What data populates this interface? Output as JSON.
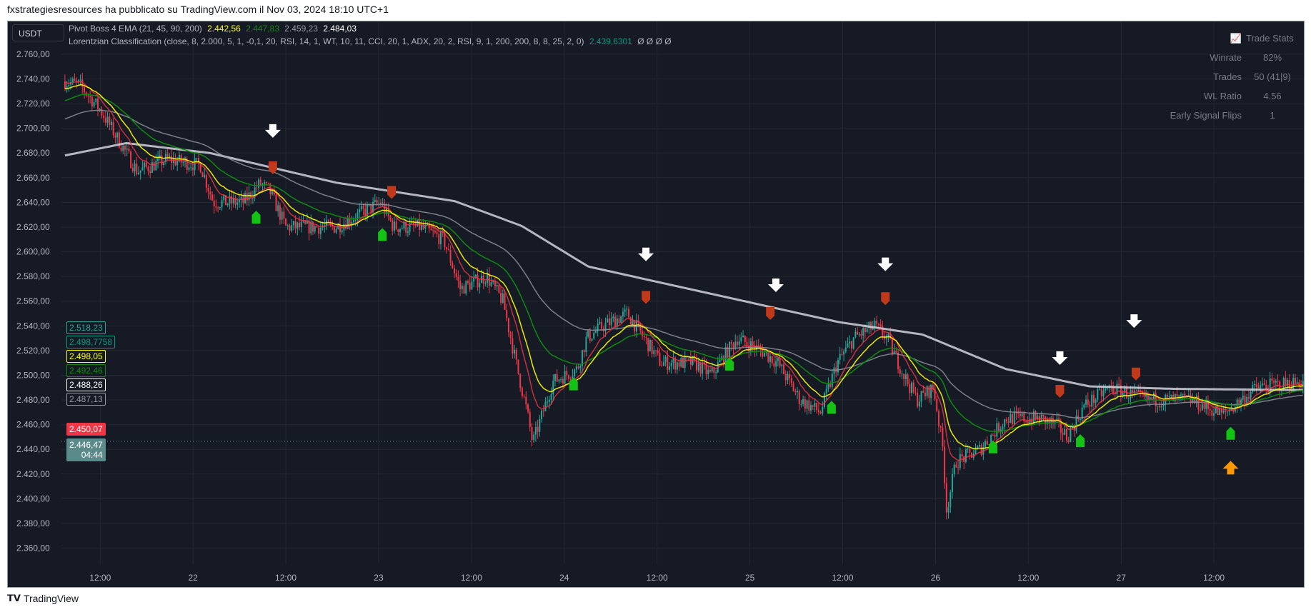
{
  "header": {
    "title": "fxstrategiesresources ha pubblicato su TradingView.com il Nov 03, 2024 18:10 UTC+1"
  },
  "symbol": {
    "label": "USDT"
  },
  "legend": {
    "ema": {
      "name": "Pivot Boss 4 EMA (21, 45, 90, 200)",
      "values": [
        "2.442,56",
        "2.447,83",
        "2.459,23",
        "2.484,03"
      ],
      "colors": [
        "#ffff00",
        "#0f8a0f",
        "#9598a1",
        "#ffffff"
      ]
    },
    "lorentzian": {
      "name": "Lorentzian Classification (close, 8, 2.000, 5, 1, -0,1, 20, RSI, 14, 1, WT, 10, 11, CCI, 20, 1, ADX, 20, 2, RSI, 9, 1, 200, 200, 8, 8, 25, 2, 0)",
      "value": "2.439,6301",
      "value_color": "#089981",
      "extras": "Ø Ø Ø Ø"
    }
  },
  "trade_stats": {
    "title": "Trade Stats",
    "icon": "chart-increasing-icon",
    "rows": [
      {
        "label": "Winrate",
        "value": "82%"
      },
      {
        "label": "Trades",
        "value": "50 (41|9)"
      },
      {
        "label": "WL Ratio",
        "value": "4.56"
      },
      {
        "label": "Early Signal Flips",
        "value": "1"
      }
    ]
  },
  "price_labels": [
    {
      "text": "2.518,23",
      "color": "#26a69a",
      "fill": false
    },
    {
      "text": "2.498,7758",
      "color": "#089981",
      "fill": false
    },
    {
      "text": "2.498,05",
      "color": "#ffff00",
      "fill": false
    },
    {
      "text": "2.492,46",
      "color": "#0f8a0f",
      "fill": false
    },
    {
      "text": "2.488,26",
      "color": "#ffffff",
      "fill": false
    },
    {
      "text": "2.487,13",
      "color": "#9598a1",
      "fill": false
    },
    {
      "text": "2.450,07",
      "color": "#f23645",
      "fill": true
    },
    {
      "text": "2.446,47",
      "sub": "04:44",
      "color": "#5b8a8a",
      "fill": true
    }
  ],
  "footer": {
    "brand": "TradingView"
  },
  "chart_data": {
    "type": "candlestick",
    "ylim": [
      2350,
      2770
    ],
    "yticks": [
      2360,
      2380,
      2400,
      2420,
      2440,
      2460,
      2480,
      2500,
      2520,
      2540,
      2560,
      2580,
      2600,
      2620,
      2640,
      2660,
      2680,
      2700,
      2720,
      2740,
      2760
    ],
    "ytick_labels": [
      "2.360,00",
      "2.380,00",
      "2.400,00",
      "2.420,00",
      "2.440,00",
      "2.460,00",
      "2.480,00",
      "2.500,00",
      "2.520,00",
      "2.540,00",
      "2.560,00",
      "2.580,00",
      "2.600,00",
      "2.620,00",
      "2.640,00",
      "2.660,00",
      "2.680,00",
      "2.700,00",
      "2.720,00",
      "2.740,00",
      "2.760,00"
    ],
    "xlim_days": [
      21.31,
      27.98
    ],
    "xticks": [
      {
        "day": 21.5,
        "label": "12:00"
      },
      {
        "day": 22,
        "label": "22"
      },
      {
        "day": 22.5,
        "label": "12:00"
      },
      {
        "day": 23,
        "label": "23"
      },
      {
        "day": 23.5,
        "label": "12:00"
      },
      {
        "day": 24,
        "label": "24"
      },
      {
        "day": 24.5,
        "label": "12:00"
      },
      {
        "day": 25,
        "label": "25"
      },
      {
        "day": 25.5,
        "label": "12:00"
      },
      {
        "day": 26,
        "label": "26"
      },
      {
        "day": 26.5,
        "label": "12:00"
      },
      {
        "day": 27,
        "label": "27"
      },
      {
        "day": 27.5,
        "label": "12:00"
      }
    ],
    "price_path": [
      [
        21.31,
        2738
      ],
      [
        21.39,
        2735
      ],
      [
        21.5,
        2715
      ],
      [
        21.64,
        2680
      ],
      [
        21.7,
        2665
      ],
      [
        21.86,
        2675
      ],
      [
        22.04,
        2670
      ],
      [
        22.11,
        2640
      ],
      [
        22.27,
        2640
      ],
      [
        22.36,
        2655
      ],
      [
        22.41,
        2650
      ],
      [
        22.5,
        2620
      ],
      [
        22.77,
        2620
      ],
      [
        22.95,
        2635
      ],
      [
        23.01,
        2640
      ],
      [
        23.08,
        2620
      ],
      [
        23.22,
        2620
      ],
      [
        23.35,
        2610
      ],
      [
        23.44,
        2570
      ],
      [
        23.58,
        2580
      ],
      [
        23.67,
        2560
      ],
      [
        23.74,
        2510
      ],
      [
        23.8,
        2470
      ],
      [
        23.83,
        2445
      ],
      [
        23.94,
        2495
      ],
      [
        24.07,
        2505
      ],
      [
        24.12,
        2530
      ],
      [
        24.21,
        2540
      ],
      [
        24.34,
        2550
      ],
      [
        24.43,
        2530
      ],
      [
        24.52,
        2510
      ],
      [
        24.7,
        2510
      ],
      [
        24.79,
        2500
      ],
      [
        24.93,
        2530
      ],
      [
        25.06,
        2520
      ],
      [
        25.15,
        2510
      ],
      [
        25.27,
        2480
      ],
      [
        25.38,
        2470
      ],
      [
        25.47,
        2510
      ],
      [
        25.56,
        2530
      ],
      [
        25.67,
        2540
      ],
      [
        25.74,
        2530
      ],
      [
        25.83,
        2500
      ],
      [
        25.9,
        2480
      ],
      [
        25.99,
        2490
      ],
      [
        26.04,
        2440
      ],
      [
        26.06,
        2390
      ],
      [
        26.11,
        2430
      ],
      [
        26.24,
        2440
      ],
      [
        26.38,
        2465
      ],
      [
        26.56,
        2465
      ],
      [
        26.65,
        2460
      ],
      [
        26.71,
        2450
      ],
      [
        26.8,
        2475
      ],
      [
        26.94,
        2490
      ],
      [
        27.14,
        2480
      ],
      [
        27.37,
        2480
      ],
      [
        27.55,
        2468
      ],
      [
        27.73,
        2490
      ],
      [
        27.98,
        2495
      ]
    ],
    "ema200_path": [
      [
        21.31,
        2678
      ],
      [
        21.64,
        2688
      ],
      [
        22.09,
        2680
      ],
      [
        22.77,
        2656
      ],
      [
        23.41,
        2641
      ],
      [
        23.77,
        2621
      ],
      [
        24.13,
        2588
      ],
      [
        24.58,
        2573
      ],
      [
        25.03,
        2558
      ],
      [
        25.48,
        2543
      ],
      [
        25.93,
        2533
      ],
      [
        26.38,
        2505
      ],
      [
        26.83,
        2491
      ],
      [
        27.28,
        2489
      ],
      [
        27.98,
        2488
      ]
    ],
    "signals": {
      "sell_arrows": [
        [
          22.43,
          2697
        ],
        [
          24.44,
          2597
        ],
        [
          25.14,
          2572
        ],
        [
          25.73,
          2589
        ],
        [
          26.67,
          2513
        ],
        [
          27.07,
          2543
        ]
      ],
      "sell_labels": [
        [
          22.43,
          2668
        ],
        [
          23.07,
          2648
        ],
        [
          24.44,
          2563
        ],
        [
          25.11,
          2550
        ],
        [
          25.73,
          2562
        ],
        [
          26.67,
          2487
        ],
        [
          27.08,
          2501
        ]
      ],
      "buy_labels": [
        [
          22.34,
          2628
        ],
        [
          23.02,
          2614
        ],
        [
          24.05,
          2493
        ],
        [
          24.89,
          2509
        ],
        [
          25.44,
          2474
        ],
        [
          26.31,
          2442
        ],
        [
          26.78,
          2447
        ],
        [
          27.59,
          2453
        ]
      ],
      "buy_arrows": [
        [
          27.59,
          2426
        ]
      ]
    },
    "colors": {
      "up": "#26a69a",
      "down": "#f23645",
      "ema21": "#ffff00",
      "ema45": "#0f8a0f",
      "ema90": "#9598a1",
      "ema200": "#d1d4dc",
      "sell_label": "#c0391b",
      "buy_label": "#13c313",
      "buy_arrow": "#ff9800"
    },
    "current_price": 2446.47
  }
}
